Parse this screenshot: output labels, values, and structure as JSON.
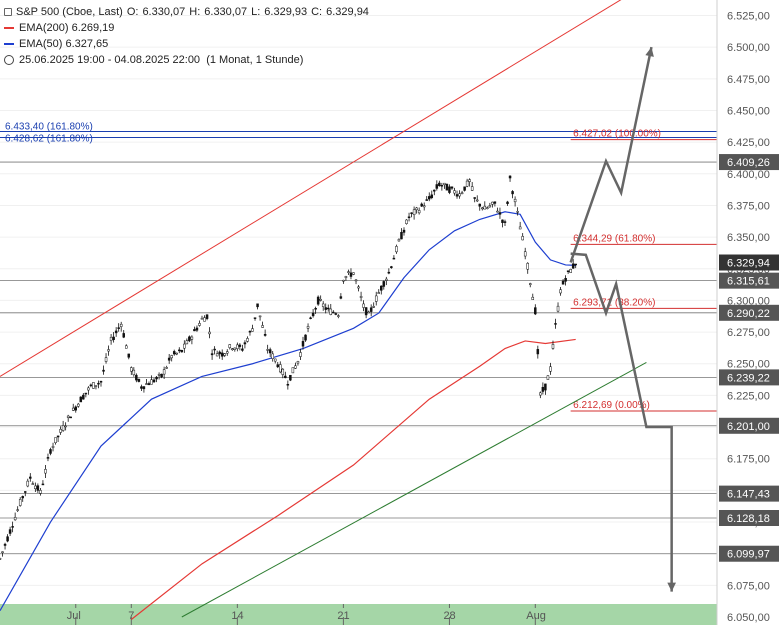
{
  "legend": {
    "symbol": "S&P 500 (Cboe, Last)",
    "o_label": "O:",
    "o": "6.330,07",
    "h_label": "H:",
    "h": "6.330,07",
    "l_label": "L:",
    "l": "6.329,93",
    "c_label": "C:",
    "c": "6.329,94",
    "ema200_label": "EMA(200)",
    "ema200": "6.269,19",
    "ema50_label": "EMA(50)",
    "ema50": "6.327,65",
    "range": "25.06.2025 19:00 - 04.08.2025 22:00",
    "period": "(1 Monat, 1 Stunde)"
  },
  "colors": {
    "ema200": "#e53935",
    "ema50": "#1e3fd0",
    "channel_red": "#e53935",
    "channel_green": "#2e7d32",
    "fib": "#d32f2f",
    "ext": "#1a3fb0",
    "badge": "#555555",
    "arrow": "#666666",
    "xaxis_bg": "#a5d6a7"
  },
  "chart_data": {
    "type": "candlestick",
    "ylim": [
      6050,
      6540
    ],
    "y_ticks": [
      6050,
      6075,
      6100,
      6125,
      6150,
      6175,
      6200,
      6225,
      6250,
      6275,
      6300,
      6325,
      6350,
      6375,
      6400,
      6425,
      6450,
      6475,
      6500,
      6525
    ],
    "y_tick_labels": [
      "6.050,00",
      "6.075,00",
      "6.100,00",
      "6.125,00",
      "6.150,00",
      "6.175,00",
      "6.200,00",
      "6.225,00",
      "6.250,00",
      "6.275,00",
      "6.300,00",
      "6.325,00",
      "6.350,00",
      "6.375,00",
      "6.400,00",
      "6.425,00",
      "6.450,00",
      "6.475,00",
      "6.500,00",
      "6.525,00"
    ],
    "x_ticks": [
      {
        "label": "Jul",
        "t": 15
      },
      {
        "label": "7",
        "t": 26
      },
      {
        "label": "14",
        "t": 47
      },
      {
        "label": "21",
        "t": 68
      },
      {
        "label": "28",
        "t": 89
      },
      {
        "label": "Aug",
        "t": 106
      }
    ],
    "x_range": [
      0,
      128
    ],
    "price_path": [
      [
        0,
        6096
      ],
      [
        2,
        6118
      ],
      [
        4,
        6140
      ],
      [
        6,
        6160
      ],
      [
        8,
        6148
      ],
      [
        10,
        6182
      ],
      [
        12,
        6196
      ],
      [
        14,
        6210
      ],
      [
        16,
        6222
      ],
      [
        18,
        6232
      ],
      [
        20,
        6236
      ],
      [
        22,
        6268
      ],
      [
        24,
        6282
      ],
      [
        26,
        6246
      ],
      [
        28,
        6232
      ],
      [
        30,
        6236
      ],
      [
        32,
        6240
      ],
      [
        34,
        6256
      ],
      [
        36,
        6260
      ],
      [
        38,
        6272
      ],
      [
        40,
        6285
      ],
      [
        41,
        6288
      ],
      [
        42,
        6260
      ],
      [
        44,
        6258
      ],
      [
        46,
        6264
      ],
      [
        48,
        6262
      ],
      [
        50,
        6278
      ],
      [
        51,
        6296
      ],
      [
        53,
        6262
      ],
      [
        55,
        6250
      ],
      [
        57,
        6236
      ],
      [
        59,
        6252
      ],
      [
        61,
        6278
      ],
      [
        63,
        6300
      ],
      [
        65,
        6292
      ],
      [
        67,
        6290
      ],
      [
        68,
        6318
      ],
      [
        70,
        6322
      ],
      [
        72,
        6295
      ],
      [
        73,
        6288
      ],
      [
        75,
        6306
      ],
      [
        77,
        6322
      ],
      [
        79,
        6346
      ],
      [
        81,
        6366
      ],
      [
        83,
        6372
      ],
      [
        85,
        6380
      ],
      [
        87,
        6392
      ],
      [
        89,
        6388
      ],
      [
        91,
        6384
      ],
      [
        93,
        6394
      ],
      [
        94,
        6380
      ],
      [
        96,
        6372
      ],
      [
        98,
        6376
      ],
      [
        100,
        6360
      ],
      [
        101,
        6396
      ],
      [
        102,
        6378
      ],
      [
        104,
        6338
      ],
      [
        106,
        6292
      ],
      [
        107,
        6225
      ],
      [
        108,
        6232
      ],
      [
        109,
        6246
      ],
      [
        110,
        6280
      ],
      [
        111,
        6308
      ],
      [
        112,
        6318
      ],
      [
        114,
        6330
      ]
    ],
    "ema50": [
      [
        0,
        6055
      ],
      [
        10,
        6125
      ],
      [
        20,
        6185
      ],
      [
        30,
        6222
      ],
      [
        40,
        6240
      ],
      [
        50,
        6250
      ],
      [
        60,
        6262
      ],
      [
        70,
        6278
      ],
      [
        75,
        6290
      ],
      [
        80,
        6318
      ],
      [
        85,
        6340
      ],
      [
        90,
        6355
      ],
      [
        95,
        6364
      ],
      [
        100,
        6370
      ],
      [
        103,
        6368
      ],
      [
        106,
        6346
      ],
      [
        109,
        6332
      ],
      [
        112,
        6328
      ],
      [
        114,
        6327.65
      ]
    ],
    "ema200": [
      [
        26,
        6048
      ],
      [
        40,
        6092
      ],
      [
        55,
        6130
      ],
      [
        70,
        6170
      ],
      [
        85,
        6222
      ],
      [
        95,
        6248
      ],
      [
        100,
        6262
      ],
      [
        104,
        6268
      ],
      [
        108,
        6266
      ],
      [
        114,
        6269.19
      ]
    ],
    "channel_red": [
      [
        0,
        6240
      ],
      [
        124,
        6540
      ]
    ],
    "channel_green": [
      [
        36,
        6050
      ],
      [
        128,
        6251
      ]
    ],
    "fib_levels": [
      {
        "value": 6427.02,
        "label": "6.427,02 (100.00%)"
      },
      {
        "value": 6344.29,
        "label": "6.344,29 (61.80%)"
      },
      {
        "value": 6293.71,
        "label": "6.293,71 (38.20%)"
      },
      {
        "value": 6212.69,
        "label": "6.212,69 (0.00%)"
      }
    ],
    "extension_levels": [
      {
        "value": 6433.4,
        "label": "6.433,40 (161.80%)"
      },
      {
        "value": 6428.62,
        "label": "6.428,62 (161.80%)"
      }
    ],
    "horizontal_levels": [
      {
        "value": 6409.26,
        "label": "6.409,26"
      },
      {
        "value": 6315.61,
        "label": "6.315,61"
      },
      {
        "value": 6290.22,
        "label": "6.290,22"
      },
      {
        "value": 6239.22,
        "label": "6.239,22"
      },
      {
        "value": 6201.0,
        "label": "6.201,00"
      },
      {
        "value": 6147.43,
        "label": "6.147,43"
      },
      {
        "value": 6128.18,
        "label": "6.128,18"
      },
      {
        "value": 6099.97,
        "label": "6.099,97"
      }
    ],
    "last_price": {
      "value": 6329.94,
      "label": "6.329,94"
    },
    "scenario_up": [
      [
        113,
        6330
      ],
      [
        120,
        6410
      ],
      [
        123,
        6385
      ],
      [
        129,
        6500
      ]
    ],
    "scenario_down": [
      [
        113,
        6337
      ],
      [
        116,
        6336
      ],
      [
        120,
        6290
      ],
      [
        122,
        6313
      ],
      [
        128,
        6200
      ],
      [
        133,
        6200
      ],
      [
        133,
        6070
      ]
    ]
  }
}
